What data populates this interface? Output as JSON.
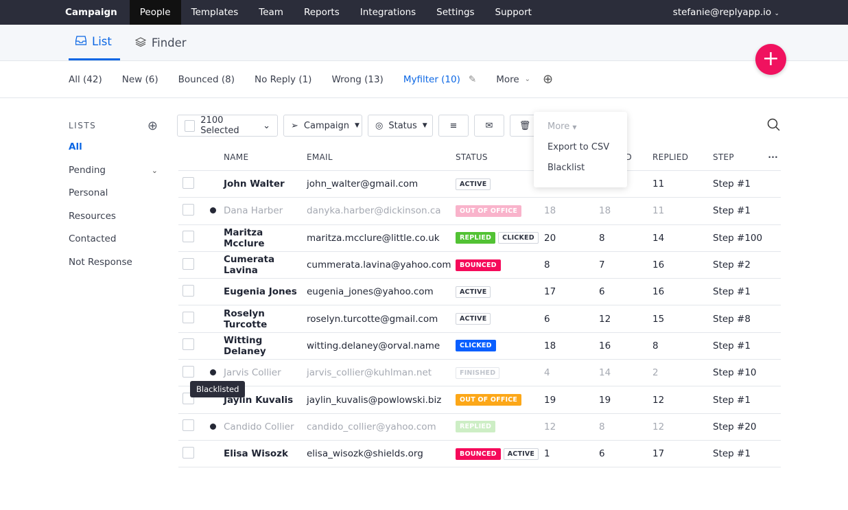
{
  "nav": {
    "brand": "Campaign",
    "items": [
      "People",
      "Templates",
      "Team",
      "Reports",
      "Integrations",
      "Settings",
      "Support"
    ],
    "active": "People",
    "user": "stefanie@replyapp.io"
  },
  "tabs": [
    {
      "label": "List",
      "icon": "inbox-icon",
      "active": true
    },
    {
      "label": "Finder",
      "icon": "layers-icon"
    }
  ],
  "filters": [
    "All (42)",
    "New (6)",
    "Bounced (8)",
    "No Reply (1)",
    "Wrong (13)",
    "Myfilter (10)",
    "More"
  ],
  "sidebar": {
    "title": "LISTS",
    "items": [
      "All",
      "Pending",
      "Personal",
      "Resources",
      "Contacted",
      "Not Response"
    ]
  },
  "toolbar": {
    "selected": "2100 Selected",
    "campaign": "Campaign",
    "status": "Status"
  },
  "dropdown": {
    "title": "More",
    "items": [
      "Export to CSV",
      "Blacklist"
    ]
  },
  "table": {
    "headers": [
      "NAME",
      "EMAIL",
      "STATUS",
      "",
      "D",
      "REPLIED",
      "STEP"
    ],
    "rows": [
      {
        "name": "John Walter",
        "email": "john_walter@gmail.com",
        "badges": [
          [
            "ACTIVE",
            "#fff"
          ]
        ],
        "a": "",
        "b": "",
        "r": "11",
        "step": "Step #1"
      },
      {
        "name": "Dana Harber",
        "email": "danyka.harber@dickinson.ca",
        "badges": [
          [
            "OUT OF OFFICE",
            "#f9b3cb"
          ]
        ],
        "a": "18",
        "b": "18",
        "r": "11",
        "step": "Step #1",
        "dim": true
      },
      {
        "name": "Maritza Mcclure",
        "email": "maritza.mcclure@little.co.uk",
        "badges": [
          [
            "REPLIED",
            "#52c234"
          ],
          [
            "CLICKED",
            "#fff"
          ]
        ],
        "a": "20",
        "b": "8",
        "r": "14",
        "step": "Step #100"
      },
      {
        "name": "Cumerata Lavina",
        "email": "cummerata.lavina@yahoo.com",
        "badges": [
          [
            "BOUNCED",
            "#f50a5a"
          ]
        ],
        "a": "8",
        "b": "7",
        "r": "16",
        "step": "Step #2"
      },
      {
        "name": "Eugenia Jones",
        "email": "eugenia_jones@yahoo.com",
        "badges": [
          [
            "ACTIVE",
            "#fff"
          ]
        ],
        "a": "17",
        "b": "6",
        "r": "16",
        "step": "Step #1"
      },
      {
        "name": "Roselyn Turcotte",
        "email": "roselyn.turcotte@gmail.com",
        "badges": [
          [
            "ACTIVE",
            "#fff"
          ]
        ],
        "a": "6",
        "b": "12",
        "r": "15",
        "step": "Step #8"
      },
      {
        "name": "Witting Delaney",
        "email": "witting.delaney@orval.name",
        "badges": [
          [
            "CLICKED",
            "#0a5fff"
          ]
        ],
        "a": "18",
        "b": "16",
        "r": "8",
        "step": "Step #1"
      },
      {
        "name": "Jarvis Collier",
        "email": "jarvis_collier@kuhlman.net",
        "badges": [
          [
            "FINISHED",
            "#fff"
          ]
        ],
        "a": "4",
        "b": "14",
        "r": "2",
        "step": "Step #10",
        "dim": true
      },
      {
        "name": "Jaylin Kuvalis",
        "email": "jaylin_kuvalis@powlowski.biz",
        "badges": [
          [
            "OUT OF OFFICE",
            "#fca718"
          ]
        ],
        "a": "19",
        "b": "19",
        "r": "12",
        "step": "Step #1"
      },
      {
        "name": "Candido Collier",
        "email": "candido_collier@yahoo.com",
        "badges": [
          [
            "REPLIED",
            "#cdeec5"
          ]
        ],
        "a": "12",
        "b": "8",
        "r": "12",
        "step": "Step #20",
        "dim": true
      },
      {
        "name": "Elisa Wisozk",
        "email": "elisa_wisozk@shields.org",
        "badges": [
          [
            "BOUNCED",
            "#f50a5a"
          ],
          [
            "ACTIVE",
            "#fff"
          ]
        ],
        "a": "1",
        "b": "6",
        "r": "17",
        "step": "Step #1"
      }
    ]
  },
  "tooltip": "Blacklisted"
}
